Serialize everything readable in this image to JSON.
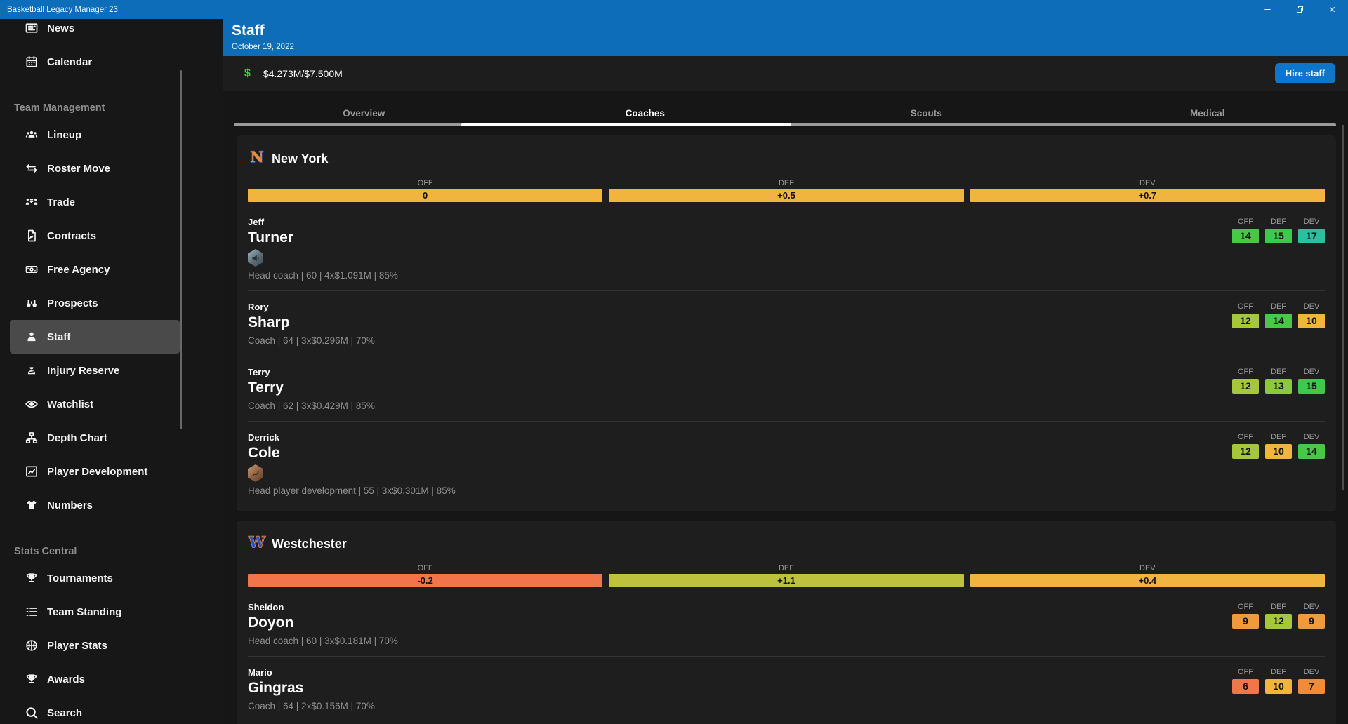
{
  "window": {
    "title": "Basketball Legacy Manager 23",
    "controls": [
      "minimize",
      "restore",
      "close"
    ]
  },
  "sidebar": {
    "sections": [
      {
        "header": "",
        "items": [
          {
            "label": "News",
            "icon": "news"
          },
          {
            "label": "Calendar",
            "icon": "calendar"
          }
        ]
      },
      {
        "header": "Team Management",
        "items": [
          {
            "label": "Lineup",
            "icon": "lineup"
          },
          {
            "label": "Roster Move",
            "icon": "roster-move"
          },
          {
            "label": "Trade",
            "icon": "trade"
          },
          {
            "label": "Contracts",
            "icon": "contracts"
          },
          {
            "label": "Free Agency",
            "icon": "free-agency"
          },
          {
            "label": "Prospects",
            "icon": "prospects"
          },
          {
            "label": "Staff",
            "icon": "staff",
            "active": true
          },
          {
            "label": "Injury Reserve",
            "icon": "injury-reserve"
          },
          {
            "label": "Watchlist",
            "icon": "watchlist"
          },
          {
            "label": "Depth Chart",
            "icon": "depth-chart"
          },
          {
            "label": "Player Development",
            "icon": "player-development"
          },
          {
            "label": "Numbers",
            "icon": "numbers"
          }
        ]
      },
      {
        "header": "Stats Central",
        "items": [
          {
            "label": "Tournaments",
            "icon": "tournaments"
          },
          {
            "label": "Team Standing",
            "icon": "team-standing"
          },
          {
            "label": "Player Stats",
            "icon": "player-stats"
          },
          {
            "label": "Awards",
            "icon": "awards"
          },
          {
            "label": "Search",
            "icon": "search"
          }
        ]
      }
    ]
  },
  "header": {
    "title": "Staff",
    "date": "October 19, 2022",
    "search_icon": "search"
  },
  "budget": {
    "currency_symbol": "$",
    "amount": "$4.273M/$7.500M",
    "hire_button": "Hire staff"
  },
  "tabs": {
    "items": [
      {
        "label": "Overview"
      },
      {
        "label": "Coaches",
        "active": true
      },
      {
        "label": "Scouts"
      },
      {
        "label": "Medical"
      }
    ]
  },
  "colors": {
    "accent_blue": "#0d6db8",
    "button_blue": "#0d76ca",
    "dollar_green": "#43d139",
    "amber": "#F0B43F",
    "coral": "#F2744B",
    "yellow_green": "#BDC23E"
  },
  "teams": [
    {
      "name": "New York",
      "logo_letter": "N",
      "logo_fill": "#F28A38",
      "logo_stroke": "#3B6BB5",
      "ratings": [
        {
          "label": "OFF",
          "value": "0",
          "color": "#F0B43F"
        },
        {
          "label": "DEF",
          "value": "+0.5",
          "color": "#F0B43F"
        },
        {
          "label": "DEV",
          "value": "+0.7",
          "color": "#F0B43F"
        }
      ],
      "coaches": [
        {
          "first": "Jeff",
          "last": "Turner",
          "badge": "megaphone",
          "details": "Head coach | 60 | 4x$1.091M | 85%",
          "stats": [
            {
              "label": "OFF",
              "value": "14",
              "color": "#49C746"
            },
            {
              "label": "DEF",
              "value": "15",
              "color": "#3DC94D"
            },
            {
              "label": "DEV",
              "value": "17",
              "color": "#2ABF9E"
            }
          ]
        },
        {
          "first": "Rory",
          "last": "Sharp",
          "badge": null,
          "details": "Coach | 64 | 3x$0.296M | 70%",
          "stats": [
            {
              "label": "OFF",
              "value": "12",
              "color": "#A6C73B"
            },
            {
              "label": "DEF",
              "value": "14",
              "color": "#49C746"
            },
            {
              "label": "DEV",
              "value": "10",
              "color": "#F0B43F"
            }
          ]
        },
        {
          "first": "Terry",
          "last": "Terry",
          "badge": null,
          "details": "Coach | 62 | 3x$0.429M | 85%",
          "stats": [
            {
              "label": "OFF",
              "value": "12",
              "color": "#A6C73B"
            },
            {
              "label": "DEF",
              "value": "13",
              "color": "#8CC73C"
            },
            {
              "label": "DEV",
              "value": "15",
              "color": "#3DC94D"
            }
          ]
        },
        {
          "first": "Derrick",
          "last": "Cole",
          "badge": "chart",
          "details": "Head player development | 55 | 3x$0.301M | 85%",
          "stats": [
            {
              "label": "OFF",
              "value": "12",
              "color": "#A6C73B"
            },
            {
              "label": "DEF",
              "value": "10",
              "color": "#F0B43F"
            },
            {
              "label": "DEV",
              "value": "14",
              "color": "#49C746"
            }
          ]
        }
      ]
    },
    {
      "name": "Westchester",
      "logo_letter": "W",
      "logo_fill": "#2F55C2",
      "logo_stroke": "#F28A38",
      "ratings": [
        {
          "label": "OFF",
          "value": "-0.2",
          "color": "#F2744B"
        },
        {
          "label": "DEF",
          "value": "+1.1",
          "color": "#BDC23E"
        },
        {
          "label": "DEV",
          "value": "+0.4",
          "color": "#F0B43F"
        }
      ],
      "coaches": [
        {
          "first": "Sheldon",
          "last": "Doyon",
          "badge": null,
          "details": "Head coach | 60 | 3x$0.181M | 70%",
          "stats": [
            {
              "label": "OFF",
              "value": "9",
              "color": "#EF9A3D"
            },
            {
              "label": "DEF",
              "value": "12",
              "color": "#A6C73B"
            },
            {
              "label": "DEV",
              "value": "9",
              "color": "#EF9A3D"
            }
          ]
        },
        {
          "first": "Mario",
          "last": "Gingras",
          "badge": null,
          "details": "Coach | 64 | 2x$0.156M | 70%",
          "stats": [
            {
              "label": "OFF",
              "value": "6",
              "color": "#F2754B"
            },
            {
              "label": "DEF",
              "value": "10",
              "color": "#F0B43F"
            },
            {
              "label": "DEV",
              "value": "7",
              "color": "#EE8C3C"
            }
          ]
        }
      ]
    }
  ]
}
